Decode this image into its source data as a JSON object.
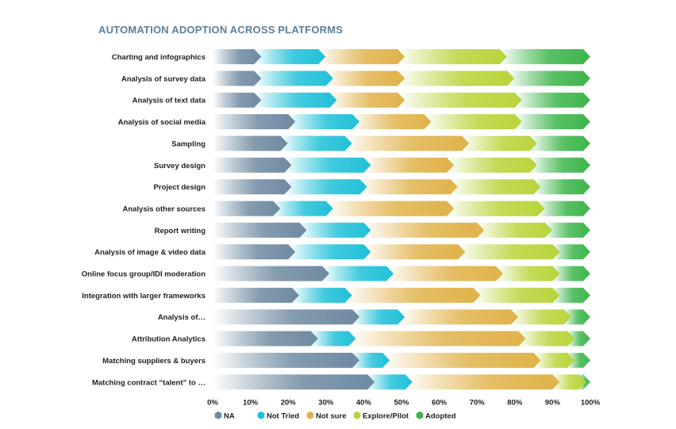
{
  "chart_data": {
    "type": "bar",
    "orientation": "horizontal",
    "stacked": true,
    "title": "AUTOMATION ADOPTION ACROSS PLATFORMS",
    "xlabel": "",
    "ylabel": "",
    "xlim": [
      0,
      100
    ],
    "x_ticks": [
      "0%",
      "10%",
      "20%",
      "30%",
      "40%",
      "50%",
      "60%",
      "70%",
      "80%",
      "90%",
      "100%"
    ],
    "grid": false,
    "legend_position": "bottom",
    "categories": [
      "Charting and infographics",
      "Analysis of survey data",
      "Analysis of text data",
      "Analysis of social media",
      "Sampling",
      "Survey design",
      "Project design",
      "Analysis other sources",
      "Report writing",
      "Analysis of image & video data",
      "Online focus group/IDI moderation",
      "Integration with larger frameworks",
      "Analysis of…",
      "Attribution Analytics",
      "Matching suppliers & buyers",
      "Matching contract “talent” to …"
    ],
    "series": [
      {
        "name": "NA",
        "color": "#6e8aa1",
        "values": [
          11,
          11,
          11,
          20,
          18,
          19,
          19,
          16,
          23,
          20,
          29,
          21,
          37,
          26,
          37,
          41
        ]
      },
      {
        "name": "Not Tried",
        "color": "#1fc0d8",
        "values": [
          17,
          19,
          20,
          17,
          17,
          21,
          20,
          14,
          17,
          20,
          17,
          14,
          12,
          10,
          8,
          10
        ]
      },
      {
        "name": "Not sure",
        "color": "#e0b24a",
        "values": [
          21,
          19,
          18,
          19,
          31,
          22,
          24,
          32,
          30,
          25,
          29,
          34,
          30,
          45,
          40,
          39
        ]
      },
      {
        "name": "Explore/Pilot",
        "color": "#b8d43a",
        "values": [
          27,
          29,
          31,
          24,
          18,
          22,
          22,
          24,
          18,
          25,
          15,
          21,
          14,
          13,
          9,
          7
        ]
      },
      {
        "name": "Adopted",
        "color": "#3cb54a",
        "values": [
          24,
          22,
          20,
          20,
          16,
          16,
          15,
          14,
          12,
          10,
          10,
          10,
          7,
          6,
          6,
          3
        ]
      }
    ]
  }
}
